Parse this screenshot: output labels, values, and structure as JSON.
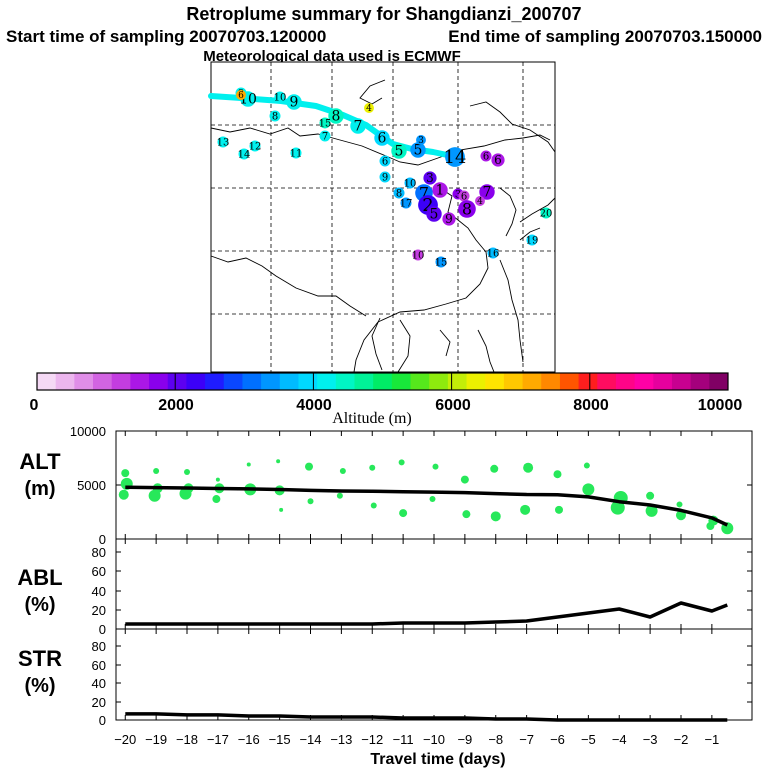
{
  "header": {
    "title": "Retroplume summary for Shangdianzi_200707",
    "start": "Start time of sampling 20070703.120000",
    "end": "End time of sampling 20070703.150000",
    "met": "Meteorological data used is ECMWF"
  },
  "colorbar": {
    "label": "Altitude (m)",
    "ticks": [
      "0",
      "2000",
      "4000",
      "6000",
      "8000",
      "10000"
    ],
    "colors": [
      "#f5d9f5",
      "#ecb6ee",
      "#e08ee8",
      "#d264e2",
      "#c33de0",
      "#ab17e6",
      "#8a00ec",
      "#5d00f0",
      "#3c00f8",
      "#1f1cff",
      "#0a47ff",
      "#0070ff",
      "#0096ff",
      "#00bbff",
      "#00d9ff",
      "#00f0ee",
      "#00f6c4",
      "#00f298",
      "#00ec66",
      "#18e83a",
      "#56e81c",
      "#8eea0e",
      "#c3ee08",
      "#ecf000",
      "#ffe400",
      "#ffc800",
      "#ffaa00",
      "#ff8800",
      "#ff5500",
      "#ff1e1e",
      "#ff0c60",
      "#ff0488",
      "#ff00a6",
      "#e6009e",
      "#c80090",
      "#a4007c",
      "#800064"
    ]
  },
  "map": {
    "labels": [
      {
        "t": "10",
        "x": 248,
        "y": 99,
        "c": "#00f0ee",
        "s": 14
      },
      {
        "t": "9",
        "x": 241,
        "y": 93,
        "c": "#00f0ee",
        "s": 10
      },
      {
        "t": "6",
        "x": 241,
        "y": 95,
        "c": "#ffaa00",
        "s": 9
      },
      {
        "t": "10",
        "x": 280,
        "y": 97,
        "c": "#00f0ee",
        "s": 10
      },
      {
        "t": "9",
        "x": 294,
        "y": 102,
        "c": "#00f0ee",
        "s": 14
      },
      {
        "t": "4",
        "x": 369,
        "y": 108,
        "c": "#ecf000",
        "s": 9
      },
      {
        "t": "8",
        "x": 275,
        "y": 116,
        "c": "#00f0ee",
        "s": 10
      },
      {
        "t": "8",
        "x": 336,
        "y": 116,
        "c": "#00f6c4",
        "s": 14
      },
      {
        "t": "15",
        "x": 325,
        "y": 123,
        "c": "#00f6c4",
        "s": 10
      },
      {
        "t": "7",
        "x": 358,
        "y": 126,
        "c": "#00f0ee",
        "s": 14
      },
      {
        "t": "7",
        "x": 325,
        "y": 136,
        "c": "#00f0ee",
        "s": 10
      },
      {
        "t": "6",
        "x": 382,
        "y": 138,
        "c": "#00d9ff",
        "s": 14
      },
      {
        "t": "13",
        "x": 223,
        "y": 142,
        "c": "#00f0ee",
        "s": 10
      },
      {
        "t": "12",
        "x": 255,
        "y": 146,
        "c": "#00f0ee",
        "s": 10
      },
      {
        "t": "14",
        "x": 244,
        "y": 154,
        "c": "#00f0ee",
        "s": 10
      },
      {
        "t": "11",
        "x": 296,
        "y": 153,
        "c": "#00f0ee",
        "s": 10
      },
      {
        "t": "5",
        "x": 399,
        "y": 151,
        "c": "#00f6c4",
        "s": 14
      },
      {
        "t": "5",
        "x": 418,
        "y": 150,
        "c": "#0096ff",
        "s": 14
      },
      {
        "t": "3",
        "x": 421,
        "y": 140,
        "c": "#0096ff",
        "s": 9
      },
      {
        "t": "6",
        "x": 385,
        "y": 161,
        "c": "#00d9ff",
        "s": 10
      },
      {
        "t": "14",
        "x": 455,
        "y": 157,
        "c": "#0096ff",
        "s": 18
      },
      {
        "t": "6",
        "x": 486,
        "y": 156,
        "c": "#ab17e6",
        "s": 10
      },
      {
        "t": "6",
        "x": 498,
        "y": 160,
        "c": "#ab17e6",
        "s": 12
      },
      {
        "t": "9",
        "x": 385,
        "y": 177,
        "c": "#00d9ff",
        "s": 10
      },
      {
        "t": "10",
        "x": 410,
        "y": 183,
        "c": "#00bbff",
        "s": 10
      },
      {
        "t": "3",
        "x": 430,
        "y": 178,
        "c": "#5d00f0",
        "s": 12
      },
      {
        "t": "1",
        "x": 440,
        "y": 190,
        "c": "#ab17e6",
        "s": 14
      },
      {
        "t": "7",
        "x": 487,
        "y": 192,
        "c": "#8a00ec",
        "s": 14
      },
      {
        "t": "8",
        "x": 399,
        "y": 193,
        "c": "#00bbff",
        "s": 10
      },
      {
        "t": "7",
        "x": 424,
        "y": 193,
        "c": "#0070ff",
        "s": 16
      },
      {
        "t": "3",
        "x": 458,
        "y": 194,
        "c": "#8a00ec",
        "s": 10
      },
      {
        "t": "6",
        "x": 464,
        "y": 196,
        "c": "#c33de0",
        "s": 10
      },
      {
        "t": "17",
        "x": 406,
        "y": 203,
        "c": "#0096ff",
        "s": 10
      },
      {
        "t": "4",
        "x": 480,
        "y": 201,
        "c": "#c33de0",
        "s": 9
      },
      {
        "t": "2",
        "x": 428,
        "y": 205,
        "c": "#3c00f8",
        "s": 18
      },
      {
        "t": "8",
        "x": 467,
        "y": 209,
        "c": "#8a00ec",
        "s": 16
      },
      {
        "t": "5",
        "x": 434,
        "y": 214,
        "c": "#5d00f0",
        "s": 14
      },
      {
        "t": "9",
        "x": 449,
        "y": 219,
        "c": "#ab17e6",
        "s": 12
      },
      {
        "t": "20",
        "x": 546,
        "y": 213,
        "c": "#00f6c4",
        "s": 10
      },
      {
        "t": "19",
        "x": 532,
        "y": 240,
        "c": "#00d9ff",
        "s": 10
      },
      {
        "t": "16",
        "x": 493,
        "y": 253,
        "c": "#00bbff",
        "s": 10
      },
      {
        "t": "10",
        "x": 418,
        "y": 255,
        "c": "#c33de0",
        "s": 10
      },
      {
        "t": "15",
        "x": 441,
        "y": 262,
        "c": "#0096ff",
        "s": 10
      }
    ]
  },
  "chart_data": [
    {
      "type": "scatter",
      "name": "ALT",
      "ylabel": "ALT",
      "yunit": "(m)",
      "ylim": [
        0,
        10000
      ],
      "yticks": [
        "10000",
        "5000",
        "0"
      ],
      "xlim": [
        -20.3,
        0.3
      ],
      "line": {
        "x": [
          -20,
          -19,
          -18,
          -17,
          -16,
          -15,
          -14,
          -13,
          -12,
          -11,
          -10,
          -9,
          -8,
          -7,
          -6,
          -5,
          -4,
          -3,
          -2,
          -1,
          -0.5
        ],
        "y": [
          4800,
          4760,
          4720,
          4680,
          4640,
          4580,
          4500,
          4440,
          4420,
          4380,
          4340,
          4300,
          4200,
          4120,
          4100,
          3900,
          3450,
          3150,
          2650,
          1950,
          1300
        ]
      },
      "points": {
        "x": [
          -20,
          -20,
          -20,
          -19,
          -19,
          -19,
          -18,
          -18,
          -18,
          -17,
          -17,
          -17,
          -16,
          -16,
          -15,
          -15,
          -15,
          -14,
          -14,
          -13,
          -13,
          -12,
          -12,
          -11,
          -11,
          -10,
          -10,
          -9,
          -9,
          -8,
          -8,
          -7,
          -7,
          -6,
          -6,
          -5,
          -5,
          -4,
          -4,
          -3,
          -3,
          -2,
          -2,
          -1,
          -1,
          -0.5
        ],
        "y": [
          6100,
          5100,
          4100,
          6300,
          4700,
          4000,
          6200,
          4700,
          4200,
          5500,
          4700,
          3700,
          6900,
          4600,
          7200,
          4500,
          2700,
          6700,
          3500,
          6300,
          4000,
          6600,
          3100,
          7100,
          2400,
          6700,
          3700,
          5500,
          2300,
          6500,
          2100,
          6600,
          2700,
          6000,
          2700,
          6800,
          4600,
          3800,
          2900,
          4000,
          2600,
          3200,
          2200,
          1700,
          1200,
          1000
        ],
        "s": [
          4,
          6,
          5,
          3,
          5,
          6,
          3,
          5,
          6,
          2,
          5,
          4,
          2,
          6,
          2,
          5,
          2,
          4,
          3,
          3,
          3,
          3,
          3,
          3,
          4,
          3,
          3,
          4,
          4,
          4,
          5,
          5,
          5,
          4,
          4,
          3,
          6,
          7,
          7,
          4,
          6,
          3,
          5,
          5,
          4,
          6
        ]
      },
      "color": "#27e85a"
    },
    {
      "type": "line",
      "name": "ABL",
      "ylabel": "ABL",
      "yunit": "(%)",
      "ylim": [
        0,
        90
      ],
      "yticks": [
        "80",
        "60",
        "40",
        "20",
        "0"
      ],
      "xlim": [
        -20.3,
        0.3
      ],
      "x": [
        -20,
        -19,
        -18,
        -17,
        -16,
        -15,
        -14,
        -13,
        -12,
        -11,
        -10,
        -9,
        -8,
        -7,
        -6,
        -5,
        -4,
        -3,
        -2,
        -1,
        -0.5
      ],
      "y": [
        5,
        5,
        5,
        5,
        5,
        5,
        5,
        5,
        5,
        6,
        6,
        6,
        7,
        8,
        12,
        16,
        20,
        12,
        26,
        18,
        24
      ]
    },
    {
      "type": "line",
      "name": "STR",
      "ylabel": "STR",
      "yunit": "(%)",
      "ylim": [
        0,
        90
      ],
      "yticks": [
        "80",
        "60",
        "40",
        "20",
        "0"
      ],
      "xlim": [
        -20.3,
        0.3
      ],
      "xlabel": "Travel time (days)",
      "xticks": [
        "−20",
        "−19",
        "−18",
        "−17",
        "−16",
        "−15",
        "−14",
        "−13",
        "−12",
        "−11",
        "−10",
        "−9",
        "−8",
        "−7",
        "−6",
        "−5",
        "−4",
        "−3",
        "−2",
        "−1"
      ],
      "x": [
        -20,
        -19,
        -18,
        -17,
        -16,
        -15,
        -14,
        -13,
        -12,
        -11,
        -10,
        -9,
        -8,
        -7,
        -6,
        -5,
        -4,
        -3,
        -2,
        -1,
        -0.5
      ],
      "y": [
        6,
        6,
        5,
        5,
        4,
        4,
        3,
        3,
        3,
        2,
        2,
        2,
        1,
        1,
        0,
        0,
        0,
        0,
        0,
        0,
        0
      ]
    }
  ]
}
